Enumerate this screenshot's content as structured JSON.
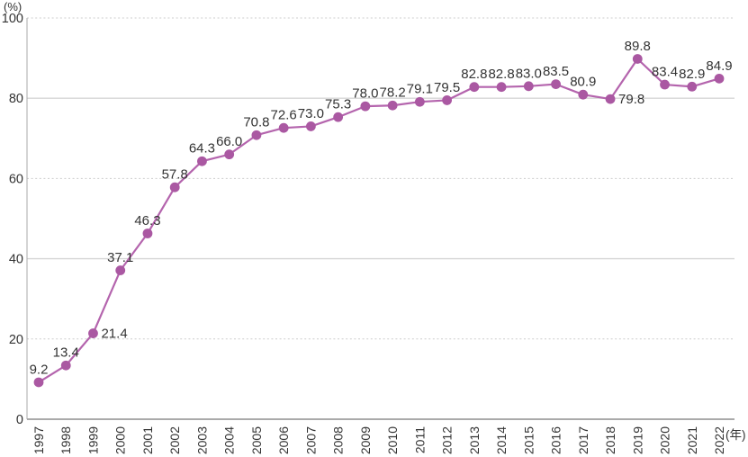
{
  "chart_data": {
    "type": "line",
    "title": "",
    "ylabel": "(%)",
    "xlabel": "(年)",
    "categories": [
      "1997",
      "1998",
      "1999",
      "2000",
      "2001",
      "2002",
      "2003",
      "2004",
      "2005",
      "2006",
      "2007",
      "2008",
      "2009",
      "2010",
      "2011",
      "2012",
      "2013",
      "2014",
      "2015",
      "2016",
      "2017",
      "2018",
      "2019",
      "2020",
      "2021",
      "2022"
    ],
    "values": [
      9.2,
      13.4,
      21.4,
      37.1,
      46.3,
      57.8,
      64.3,
      66.0,
      70.8,
      72.6,
      73.0,
      75.3,
      78.0,
      78.2,
      79.1,
      79.5,
      82.8,
      82.8,
      83.0,
      83.5,
      80.9,
      79.8,
      89.8,
      83.4,
      82.9,
      84.9
    ],
    "point_labels": [
      "9.2",
      "13.4",
      "21.4",
      "37.1",
      "46.3",
      "57.8",
      "64.3",
      "66.0",
      "70.8",
      "72.6",
      "73.0",
      "75.3",
      "78.0",
      "78.2",
      "79.1",
      "79.5",
      "82.8",
      "82.8",
      "83.0",
      "83.5",
      "80.9",
      "79.8",
      "89.8",
      "83.4",
      "82.9",
      "84.9"
    ],
    "label_side_overrides": {
      "2": "right",
      "21": "right"
    },
    "ylim": [
      0,
      100
    ],
    "yticks": [
      0,
      20,
      40,
      60,
      80,
      100
    ],
    "grid": true,
    "legend_position": "none",
    "colors": {
      "line": "#b464ad",
      "marker": "#aa58a2",
      "text": "#333333",
      "grid_solid": "#d6d6d6",
      "grid_dashed": "#cdcdcd",
      "axis": "#aaaaaa"
    }
  }
}
